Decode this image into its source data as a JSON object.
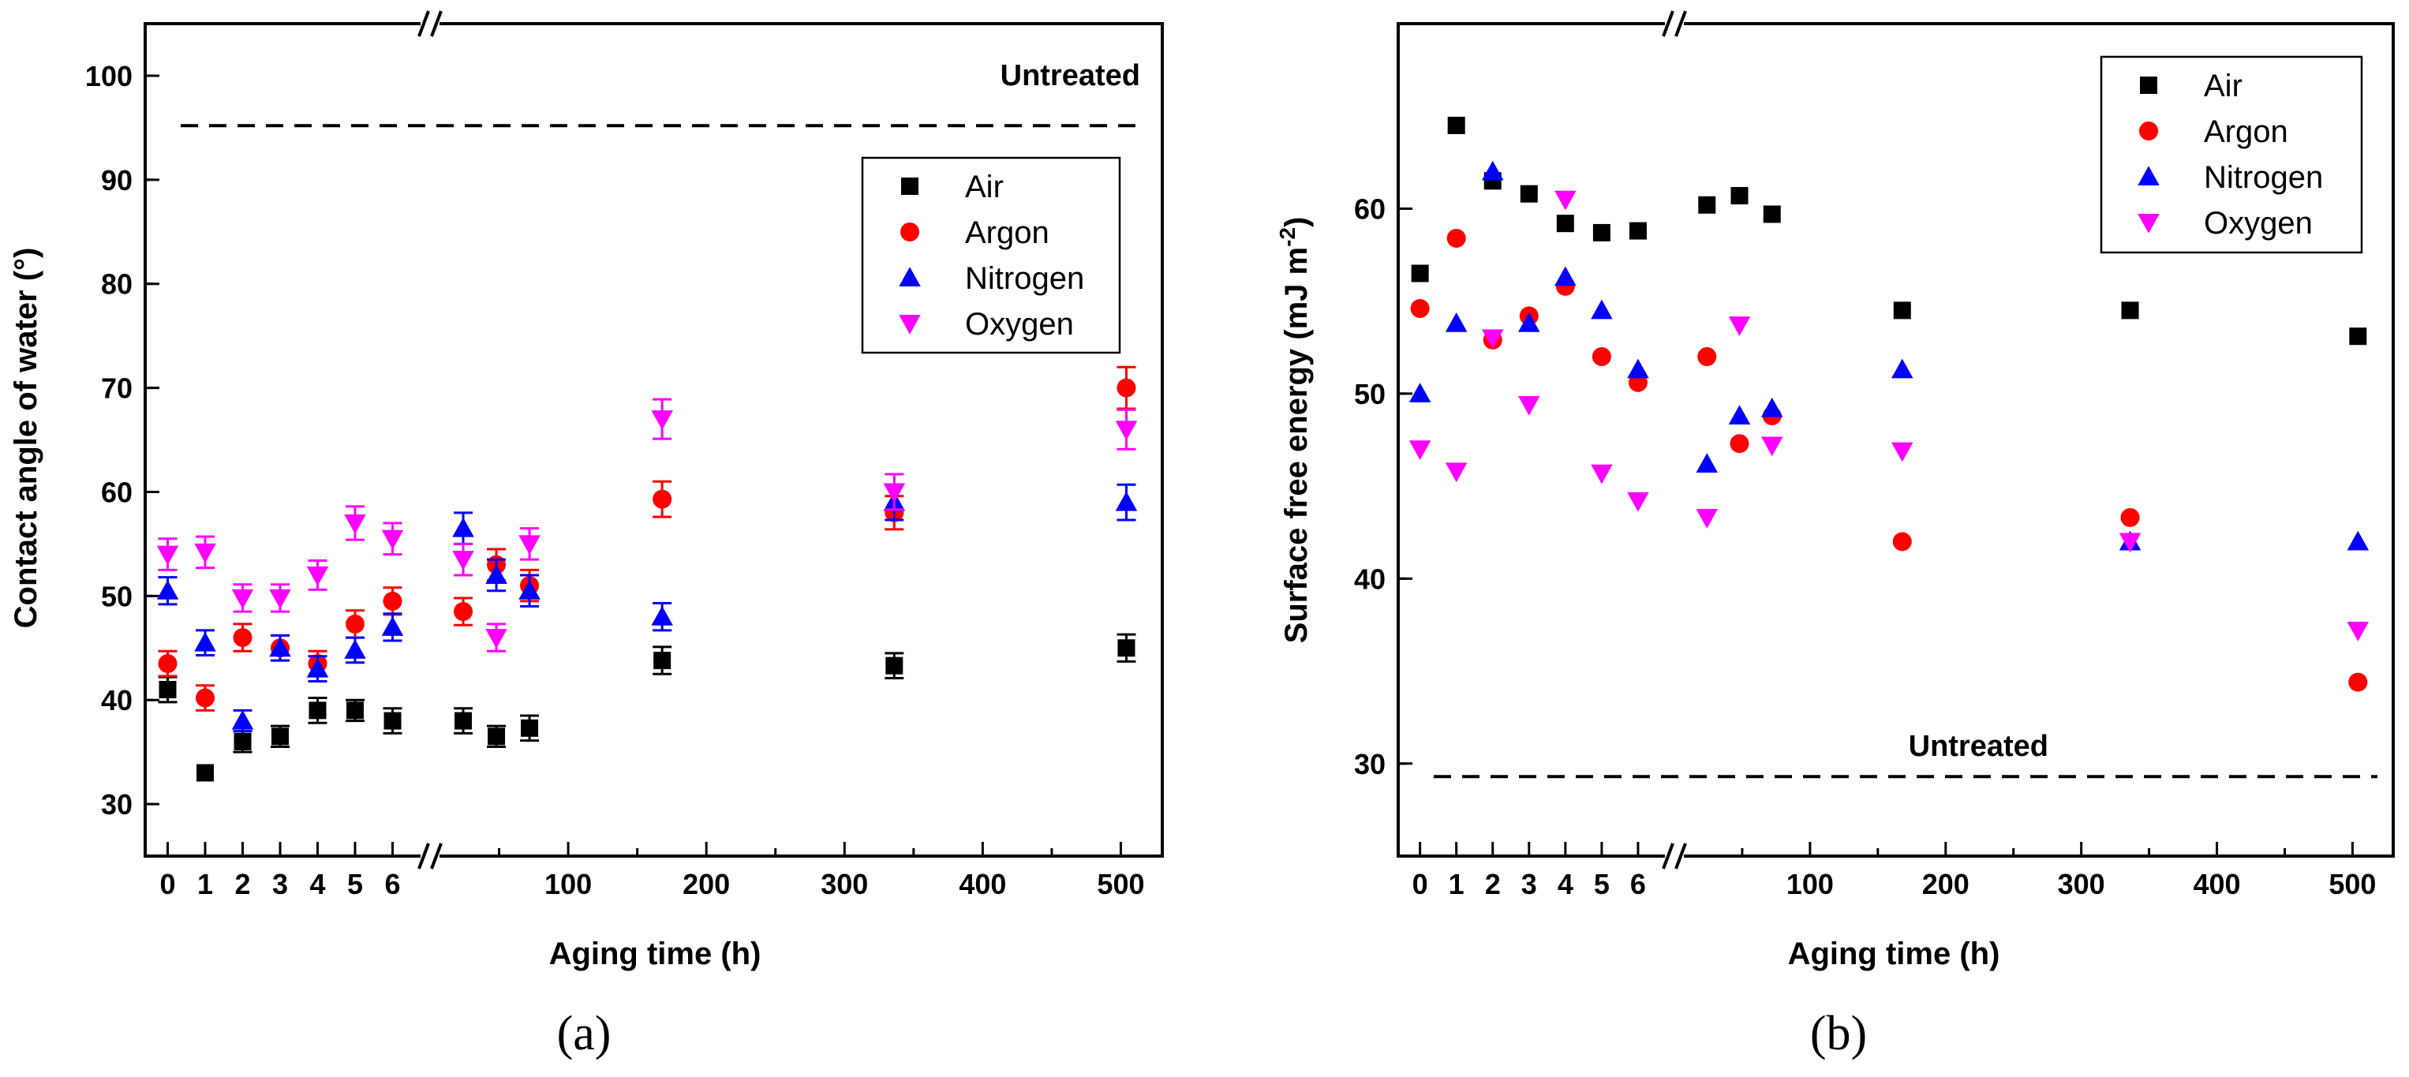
{
  "chart_data": [
    {
      "type": "scatter",
      "panel_label": "(a)",
      "xlabel": "Aging time (h)",
      "ylabel": "Contact angle of water (°)",
      "ylim": [
        25,
        105
      ],
      "yticks": [
        30,
        40,
        50,
        60,
        70,
        80,
        90,
        100
      ],
      "x_axis": {
        "broken": true,
        "segment1": {
          "range": [
            -0.6,
            7.0
          ],
          "ticks": [
            0,
            1,
            2,
            3,
            4,
            5,
            6
          ]
        },
        "segment2": {
          "range": [
            0,
            530
          ],
          "ticks": [
            100,
            200,
            300,
            400,
            500
          ]
        }
      },
      "error_bars": true,
      "legend_position": "upper-right",
      "reference_line": {
        "label": "Untreated",
        "y": 95.2
      },
      "x_short": [
        0,
        1,
        2,
        3,
        4,
        5,
        6
      ],
      "x_long": [
        24,
        48,
        72,
        168,
        336,
        504
      ],
      "series": [
        {
          "name": "Air",
          "marker": "square",
          "color": "#000000",
          "short": [
            41.0,
            33.0,
            36.0,
            36.5,
            39.0,
            39.0,
            38.0
          ],
          "long": [
            38.0,
            36.5,
            37.3,
            43.8,
            43.3,
            45.0
          ],
          "short_err": [
            1.2,
            0,
            1.0,
            1.0,
            1.2,
            1.0,
            1.2
          ],
          "long_err": [
            1.2,
            1.0,
            1.2,
            1.3,
            1.2,
            1.3
          ]
        },
        {
          "name": "Argon",
          "marker": "circle",
          "color": "#ff0000",
          "short": [
            43.5,
            40.2,
            46.0,
            45.0,
            43.5,
            47.3,
            49.5
          ],
          "long": [
            48.5,
            53.0,
            51.0,
            59.3,
            58.0,
            70.0
          ],
          "short_err": [
            1.2,
            1.2,
            1.3,
            1.2,
            1.2,
            1.3,
            1.3
          ],
          "long_err": [
            1.3,
            1.5,
            1.5,
            1.7,
            1.6,
            2.0
          ]
        },
        {
          "name": "Nitrogen",
          "marker": "triangle-up",
          "color": "#0000ff",
          "short": [
            50.5,
            45.5,
            38.0,
            45.0,
            43.0,
            44.8,
            47.0
          ],
          "long": [
            56.5,
            52.0,
            50.5,
            48.0,
            59.0,
            59.0
          ],
          "short_err": [
            1.3,
            1.2,
            1.0,
            1.2,
            1.2,
            1.2,
            1.3
          ],
          "long_err": [
            1.5,
            1.5,
            1.5,
            1.3,
            1.7,
            1.7
          ]
        },
        {
          "name": "Oxygen",
          "marker": "triangle-down",
          "color": "#ff00ff",
          "short": [
            54.0,
            54.2,
            49.8,
            49.8,
            52.0,
            57.0,
            55.5
          ],
          "long": [
            53.5,
            46.0,
            55.0,
            67.0,
            60.0,
            66.0
          ],
          "short_err": [
            1.5,
            1.5,
            1.3,
            1.3,
            1.4,
            1.6,
            1.5
          ],
          "long_err": [
            1.5,
            1.3,
            1.5,
            1.9,
            1.7,
            1.9
          ]
        }
      ]
    },
    {
      "type": "scatter",
      "panel_label": "(b)",
      "xlabel": "Aging time (h)",
      "ylabel": "Surface free energy (mJ m",
      "ylabel_sup": "-2",
      "ylabel_end": ")",
      "ylim": [
        25,
        70
      ],
      "yticks": [
        30,
        40,
        50,
        60
      ],
      "x_axis": {
        "broken": true,
        "segment1": {
          "range": [
            -0.6,
            7.0
          ],
          "ticks": [
            0,
            1,
            2,
            3,
            4,
            5,
            6
          ]
        },
        "segment2": {
          "range": [
            0,
            530
          ],
          "ticks": [
            100,
            200,
            300,
            400,
            500
          ]
        }
      },
      "error_bars": false,
      "legend_position": "upper-right",
      "reference_line": {
        "label": "Untreated",
        "y": 29.3
      },
      "x_short": [
        0,
        1,
        2,
        3,
        4,
        5,
        6
      ],
      "x_long": [
        24,
        48,
        72,
        168,
        336,
        504
      ],
      "series": [
        {
          "name": "Air",
          "marker": "square",
          "color": "#000000",
          "short": [
            56.5,
            64.5,
            61.5,
            60.8,
            59.2,
            58.7,
            58.8
          ],
          "long": [
            60.2,
            60.7,
            59.7,
            54.5,
            54.5,
            53.1
          ]
        },
        {
          "name": "Argon",
          "marker": "circle",
          "color": "#ff0000",
          "short": [
            54.6,
            58.4,
            52.9,
            54.2,
            55.8,
            52.0,
            50.6
          ],
          "long": [
            52.0,
            47.3,
            48.8,
            42.0,
            43.3,
            34.4
          ]
        },
        {
          "name": "Nitrogen",
          "marker": "triangle-up",
          "color": "#0000ff",
          "short": [
            50.0,
            53.8,
            62.0,
            53.8,
            56.3,
            54.5,
            51.3
          ],
          "long": [
            46.2,
            48.8,
            49.2,
            51.3,
            42.0,
            42.0
          ]
        },
        {
          "name": "Oxygen",
          "marker": "triangle-down",
          "color": "#ff00ff",
          "short": [
            47.0,
            45.8,
            53.0,
            49.4,
            60.5,
            45.7,
            44.2
          ],
          "long": [
            43.3,
            53.7,
            47.2,
            46.9,
            42.0,
            37.2
          ]
        }
      ]
    }
  ]
}
